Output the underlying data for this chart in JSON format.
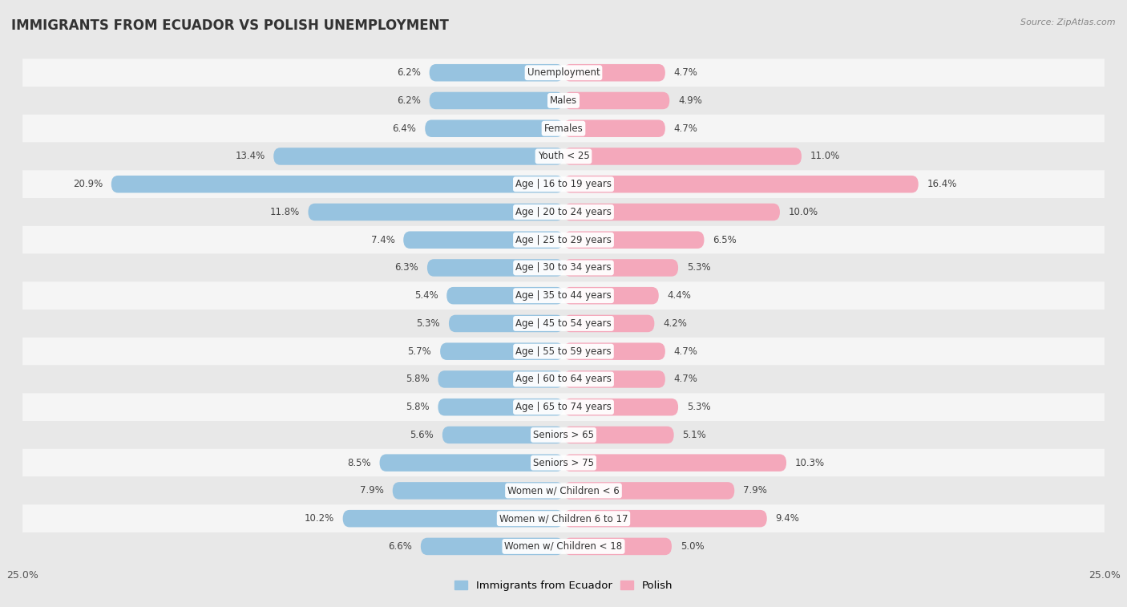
{
  "title": "IMMIGRANTS FROM ECUADOR VS POLISH UNEMPLOYMENT",
  "source": "Source: ZipAtlas.com",
  "categories": [
    "Unemployment",
    "Males",
    "Females",
    "Youth < 25",
    "Age | 16 to 19 years",
    "Age | 20 to 24 years",
    "Age | 25 to 29 years",
    "Age | 30 to 34 years",
    "Age | 35 to 44 years",
    "Age | 45 to 54 years",
    "Age | 55 to 59 years",
    "Age | 60 to 64 years",
    "Age | 65 to 74 years",
    "Seniors > 65",
    "Seniors > 75",
    "Women w/ Children < 6",
    "Women w/ Children 6 to 17",
    "Women w/ Children < 18"
  ],
  "left_values": [
    6.2,
    6.2,
    6.4,
    13.4,
    20.9,
    11.8,
    7.4,
    6.3,
    5.4,
    5.3,
    5.7,
    5.8,
    5.8,
    5.6,
    8.5,
    7.9,
    10.2,
    6.6
  ],
  "right_values": [
    4.7,
    4.9,
    4.7,
    11.0,
    16.4,
    10.0,
    6.5,
    5.3,
    4.4,
    4.2,
    4.7,
    4.7,
    5.3,
    5.1,
    10.3,
    7.9,
    9.4,
    5.0
  ],
  "left_color": "#97c3e0",
  "right_color": "#f4a8bb",
  "left_label": "Immigrants from Ecuador",
  "right_label": "Polish",
  "xlim": 25.0,
  "background_color": "#e8e8e8",
  "row_color_light": "#f5f5f5",
  "row_color_dark": "#e8e8e8",
  "title_fontsize": 12,
  "source_fontsize": 8,
  "axis_fontsize": 9,
  "label_fontsize": 8.5,
  "value_fontsize": 8.5
}
